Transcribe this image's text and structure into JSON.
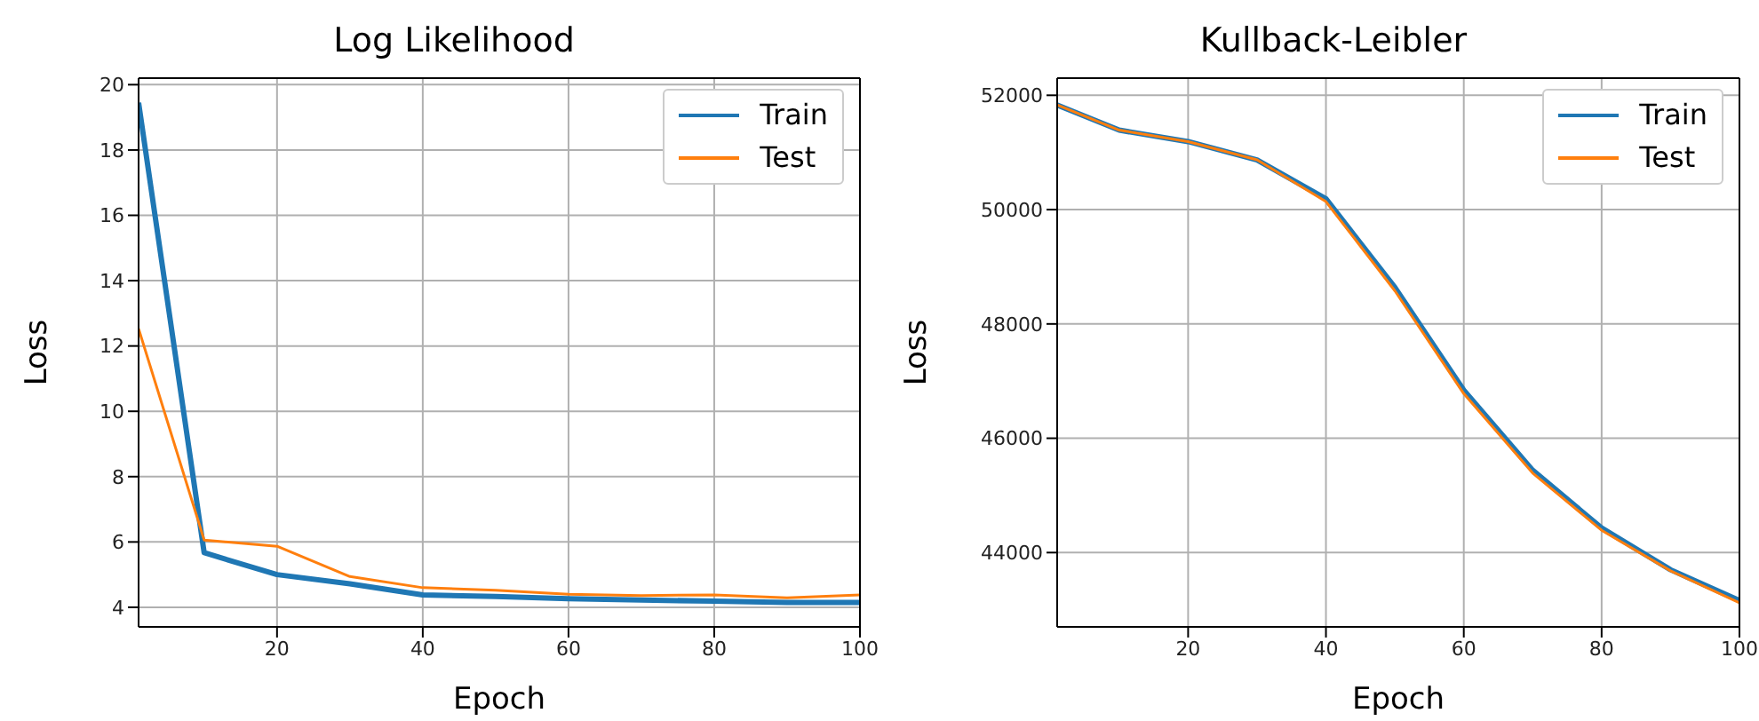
{
  "chart_data": [
    {
      "type": "line",
      "title": "Log Likelihood",
      "xlabel": "Epoch",
      "ylabel": "Loss",
      "x": [
        1,
        10,
        20,
        30,
        40,
        50,
        60,
        70,
        80,
        90,
        100
      ],
      "xlim": [
        1,
        100
      ],
      "xticks": [
        20,
        40,
        60,
        80,
        100
      ],
      "ylim": [
        3.4,
        20.2
      ],
      "yticks": [
        4,
        6,
        8,
        10,
        12,
        14,
        16,
        18,
        20
      ],
      "grid": true,
      "legend": "top right",
      "marker": "none",
      "line_style": "solid",
      "series": [
        {
          "name": "Train",
          "color": "#1f77b4",
          "values": [
            19.45,
            5.67,
            5.0,
            4.72,
            4.38,
            4.33,
            4.26,
            4.22,
            4.19,
            4.15,
            4.15
          ]
        },
        {
          "name": "Test",
          "color": "#ff7f0e",
          "values": [
            12.53,
            6.06,
            5.87,
            4.94,
            4.6,
            4.52,
            4.4,
            4.36,
            4.38,
            4.29,
            4.38
          ]
        }
      ]
    },
    {
      "type": "line",
      "title": "Kullback-Leibler",
      "xlabel": "Epoch",
      "ylabel": "Loss",
      "x": [
        1,
        10,
        20,
        30,
        40,
        50,
        60,
        70,
        80,
        90,
        100
      ],
      "xlim": [
        1,
        100
      ],
      "xticks": [
        20,
        40,
        60,
        80,
        100
      ],
      "ylim": [
        42700,
        52300
      ],
      "yticks": [
        44000,
        46000,
        48000,
        50000,
        52000
      ],
      "grid": true,
      "legend": "top right",
      "marker": "none",
      "line_style": "solid",
      "series": [
        {
          "name": "Train",
          "color": "#1f77b4",
          "values": [
            51830,
            51390,
            51190,
            50870,
            50190,
            48640,
            46840,
            45440,
            44430,
            43700,
            43160
          ]
        },
        {
          "name": "Test",
          "color": "#ff7f0e",
          "values": [
            51830,
            51390,
            51190,
            50870,
            50140,
            48580,
            46780,
            45390,
            44390,
            43680,
            43120
          ]
        }
      ]
    }
  ]
}
